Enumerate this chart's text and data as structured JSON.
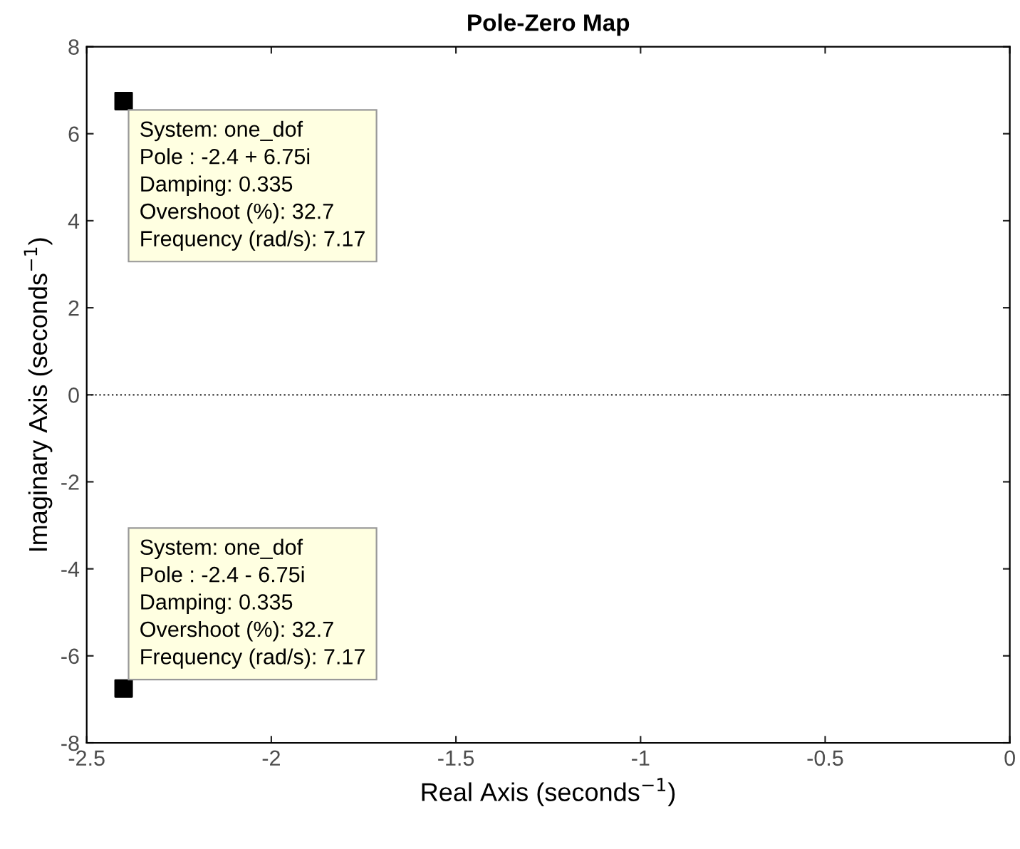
{
  "chart_data": {
    "type": "scatter",
    "title": "Pole-Zero Map",
    "xlabel": "Real Axis (seconds$^{−1}$)",
    "ylabel": "Imaginary Axis (seconds$^{−1}$)",
    "x": [
      -2.4,
      -2.4
    ],
    "values": [
      6.75,
      -6.75
    ],
    "color": "#000000",
    "marker": "square",
    "xlim": [
      -2.5,
      0
    ],
    "ylim": [
      -8,
      8
    ],
    "xticks": [
      -2.5,
      -2,
      -1.5,
      -1,
      -0.5,
      0
    ],
    "yticks": [
      -8,
      -6,
      -4,
      -2,
      0,
      2,
      4,
      6,
      8
    ],
    "grid": false,
    "ref_lines": [
      {
        "axis": "y",
        "value": 0,
        "line_style": "dotted",
        "color": "#333333"
      }
    ],
    "annotations": [
      {
        "text": "System: one_dof\nPole : -2.4 + 6.75i\nDamping: 0.335\nOvershoot (%): 32.7\nFrequency (rad/s): 7.17",
        "x": -2.4,
        "y": 6.75
      },
      {
        "text": "System: one_dof\nPole : -2.4 - 6.75i\nDamping: 0.335\nOvershoot (%): 32.7\nFrequency (rad/s): 7.17",
        "x": -2.4,
        "y": -6.75
      }
    ]
  }
}
